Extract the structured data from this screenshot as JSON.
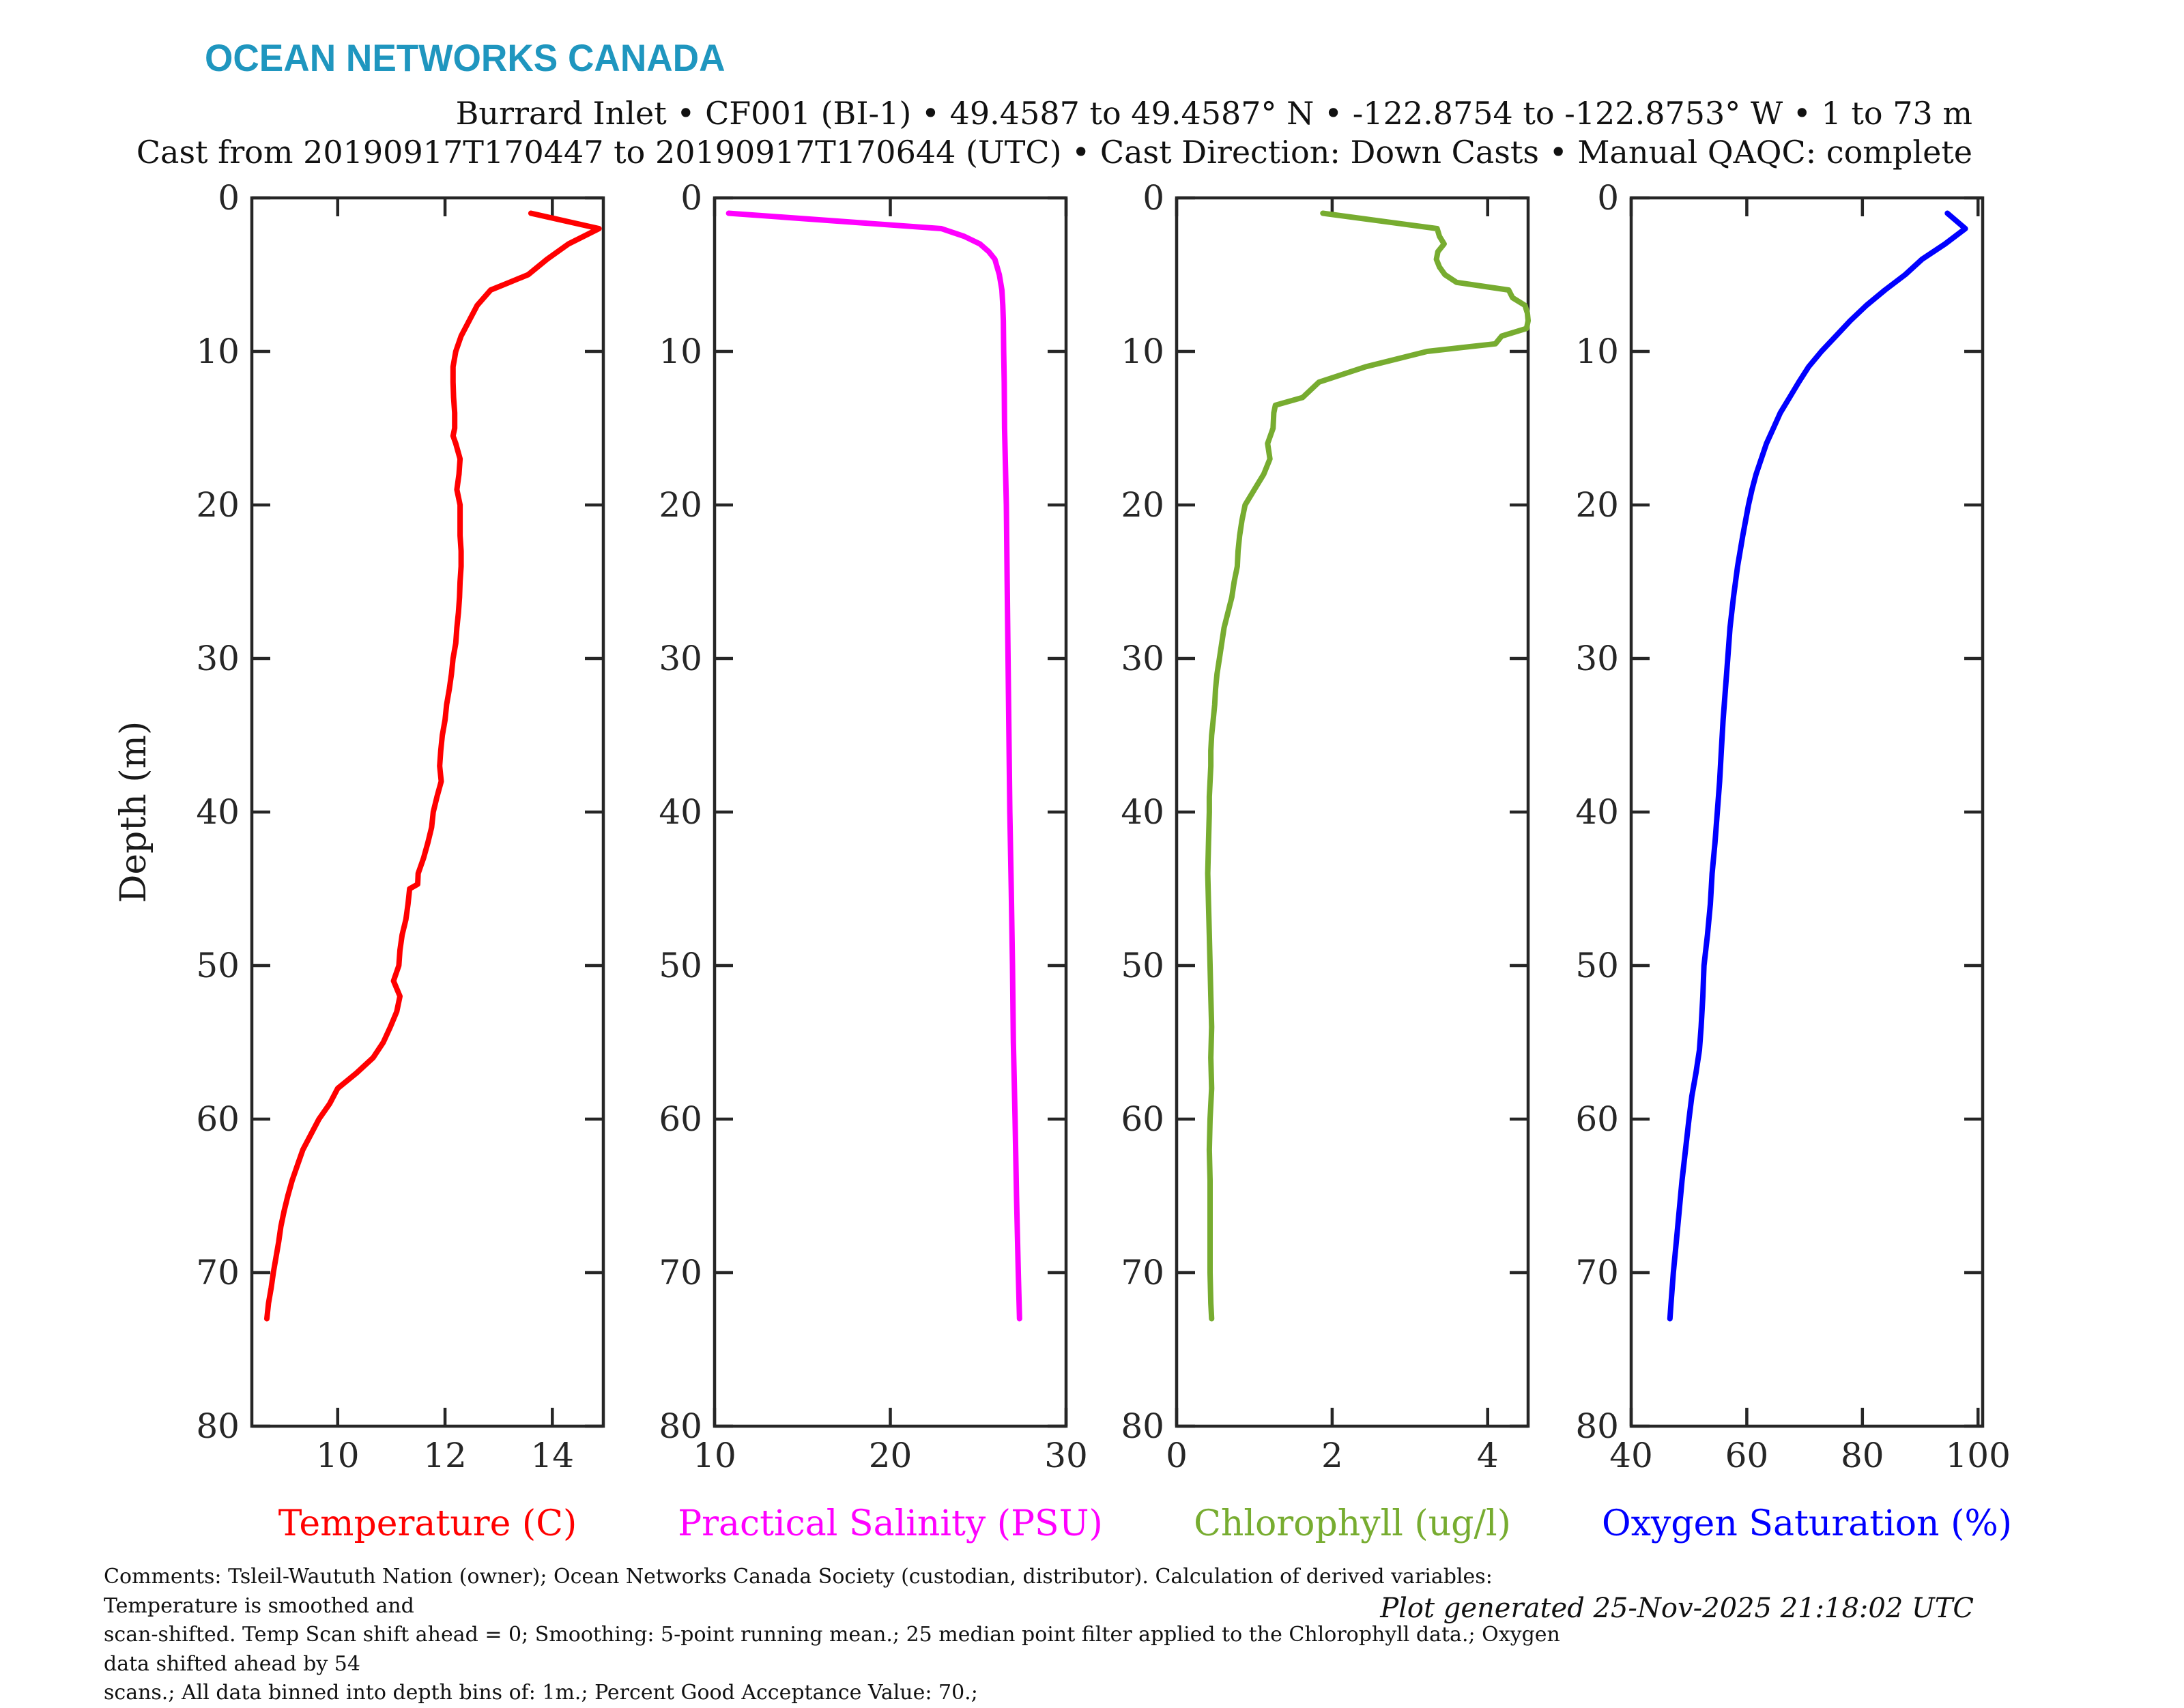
{
  "logo": {
    "text": "OCEAN NETWORKS CANADA",
    "color": "#1f96bf"
  },
  "header": {
    "title_lines": [
      "Burrard Inlet • CF001 (BI-1) • 49.4587 to 49.4587° N • -122.8754 to -122.8753° W • 1 to 73 m",
      "Cast from 20190917T170447 to 20190917T170644 (UTC) • Cast Direction: Down Casts • Manual QAQC: complete"
    ]
  },
  "footer": {
    "comments_lines": [
      "Comments: Tsleil-Waututh Nation (owner); Ocean Networks Canada Society (custodian, distributor). Calculation of derived variables: Temperature is smoothed and",
      "scan-shifted. Temp Scan shift ahead = 0; Smoothing: 5-point running mean.; 25 median point filter applied to the Chlorophyll data.; Oxygen data shifted ahead by 54",
      "scans.; All data binned into depth bins of: 1m.; Percent Good Acceptance Value: 70.;"
    ],
    "generated": "Plot generated 25-Nov-2025 21:18:02 UTC"
  },
  "chart_data": {
    "type": "line",
    "orientation": "vertical-profile",
    "ylabel": "Depth (m)",
    "ylim": [
      0,
      80
    ],
    "yticks": [
      0,
      10,
      20,
      30,
      40,
      50,
      60,
      70,
      80
    ],
    "y_reversed": true,
    "grid": false,
    "axis_color": "#262626",
    "series": [
      {
        "name": "Temperature",
        "xlabel": "Temperature (C)",
        "color": "#ff0000",
        "xlim": [
          8.4,
          14.95
        ],
        "xticks": [
          10,
          12,
          14
        ],
        "depth": [
          1,
          2,
          3,
          4,
          5,
          5.5,
          6,
          7,
          8,
          9,
          10,
          11,
          12,
          13,
          14,
          15,
          15.5,
          16,
          17,
          18,
          19,
          20,
          21,
          22,
          23,
          24,
          25,
          26,
          27,
          28,
          29,
          30,
          31,
          32,
          33,
          34,
          35,
          36,
          37,
          38,
          39,
          40,
          41,
          42,
          43,
          44,
          44.7,
          45,
          46,
          47,
          48,
          49,
          50,
          51,
          52,
          53,
          54,
          55,
          56,
          57,
          58,
          59,
          60,
          61,
          62,
          63,
          64,
          65,
          66,
          67,
          68,
          69,
          70,
          71,
          72,
          73
        ],
        "values": [
          13.6,
          14.87,
          14.3,
          13.9,
          13.55,
          13.2,
          12.85,
          12.6,
          12.45,
          12.3,
          12.2,
          12.15,
          12.15,
          12.16,
          12.18,
          12.18,
          12.15,
          12.2,
          12.28,
          12.26,
          12.22,
          12.28,
          12.28,
          12.28,
          12.3,
          12.3,
          12.28,
          12.27,
          12.25,
          12.22,
          12.2,
          12.15,
          12.12,
          12.08,
          12.03,
          12.0,
          11.95,
          11.92,
          11.9,
          11.93,
          11.85,
          11.78,
          11.75,
          11.68,
          11.6,
          11.5,
          11.49,
          11.34,
          11.31,
          11.27,
          11.2,
          11.16,
          11.14,
          11.04,
          11.16,
          11.1,
          10.98,
          10.85,
          10.66,
          10.35,
          10.0,
          9.85,
          9.65,
          9.5,
          9.35,
          9.25,
          9.15,
          9.07,
          9.0,
          8.94,
          8.9,
          8.85,
          8.8,
          8.76,
          8.71,
          8.68
        ]
      },
      {
        "name": "Salinity",
        "xlabel": "Practical Salinity (PSU)",
        "color": "#ff00ff",
        "xlim": [
          10,
          30
        ],
        "xticks": [
          10,
          20,
          30
        ],
        "depth": [
          1,
          2,
          2.5,
          3,
          3.5,
          4,
          5,
          6,
          7,
          8,
          10,
          12,
          15,
          20,
          25,
          30,
          35,
          40,
          45,
          50,
          55,
          60,
          65,
          70,
          73
        ],
        "values": [
          10.8,
          22.9,
          24.2,
          25.1,
          25.6,
          25.95,
          26.2,
          26.35,
          26.4,
          26.43,
          26.45,
          26.48,
          26.5,
          26.6,
          26.65,
          26.7,
          26.75,
          26.8,
          26.88,
          26.95,
          27.0,
          27.1,
          27.18,
          27.28,
          27.35
        ]
      },
      {
        "name": "Chlorophyll",
        "xlabel": "Chlorophyll (ug/l)",
        "color": "#77ac30",
        "xlim": [
          0,
          4.52
        ],
        "xticks": [
          0,
          2,
          4
        ],
        "depth": [
          1,
          2,
          2.5,
          3,
          3.5,
          4,
          4.5,
          5,
          5.5,
          6,
          6.5,
          7,
          7.5,
          8,
          8.5,
          9,
          9.5,
          10,
          11,
          12,
          13,
          13.5,
          14,
          15,
          16,
          17,
          18,
          19,
          20,
          21,
          22,
          23,
          24,
          25,
          26,
          27,
          28,
          29,
          30,
          31,
          32,
          33,
          34,
          35,
          36,
          37,
          38,
          39,
          40,
          42,
          44,
          46,
          48,
          50,
          52,
          54,
          56,
          58,
          60,
          62,
          64,
          66,
          68,
          70,
          72,
          73
        ],
        "values": [
          1.88,
          3.35,
          3.38,
          3.44,
          3.36,
          3.34,
          3.38,
          3.45,
          3.6,
          4.27,
          4.32,
          4.48,
          4.51,
          4.52,
          4.5,
          4.18,
          4.1,
          3.22,
          2.43,
          1.83,
          1.62,
          1.27,
          1.25,
          1.24,
          1.17,
          1.2,
          1.12,
          1.0,
          0.88,
          0.84,
          0.81,
          0.79,
          0.78,
          0.74,
          0.71,
          0.66,
          0.61,
          0.58,
          0.55,
          0.52,
          0.5,
          0.49,
          0.47,
          0.45,
          0.44,
          0.44,
          0.43,
          0.42,
          0.42,
          0.41,
          0.4,
          0.41,
          0.42,
          0.43,
          0.44,
          0.45,
          0.44,
          0.45,
          0.43,
          0.42,
          0.43,
          0.43,
          0.43,
          0.43,
          0.44,
          0.45
        ]
      },
      {
        "name": "Oxygen",
        "xlabel": "Oxygen Saturation (%)",
        "color": "#0000ff",
        "xlim": [
          40,
          100.8
        ],
        "xticks": [
          40,
          60,
          80,
          100
        ],
        "depth": [
          1,
          2,
          3,
          4,
          5,
          6,
          7,
          8,
          9,
          10,
          11,
          12,
          13,
          14,
          15,
          16,
          17,
          18,
          19,
          20,
          22,
          24,
          26,
          28,
          30,
          32,
          34,
          36,
          38,
          40,
          42,
          44,
          46,
          48,
          50,
          52,
          54,
          55.5,
          57,
          58.5,
          60,
          62,
          64,
          66,
          68,
          70,
          72,
          73
        ],
        "values": [
          94.7,
          97.8,
          94.3,
          90.3,
          87.4,
          83.9,
          80.7,
          77.9,
          75.4,
          72.9,
          70.7,
          69.0,
          67.4,
          65.8,
          64.6,
          63.4,
          62.5,
          61.6,
          60.9,
          60.3,
          59.3,
          58.4,
          57.7,
          57.1,
          56.7,
          56.3,
          55.9,
          55.6,
          55.3,
          54.9,
          54.5,
          54.0,
          53.7,
          53.2,
          52.6,
          52.4,
          52.1,
          51.8,
          51.2,
          50.5,
          50.0,
          49.4,
          48.8,
          48.3,
          47.8,
          47.3,
          46.9,
          46.7
        ]
      }
    ]
  }
}
